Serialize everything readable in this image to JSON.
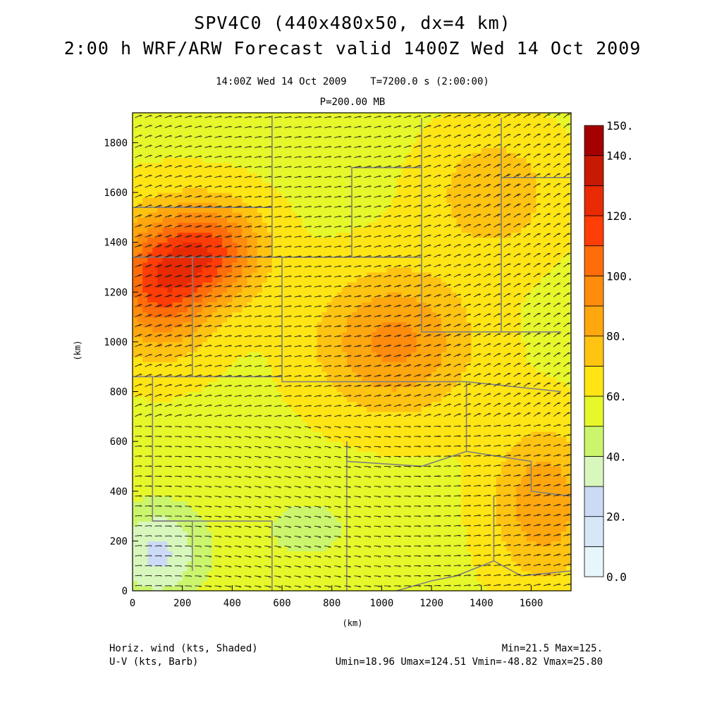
{
  "header": {
    "title_line1": "SPV4C0 (440x480x50, dx=4 km)",
    "title_line2": "2:00 h WRF/ARW Forecast valid 1400Z Wed 14 Oct 2009",
    "subtitle_line1": "14:00Z Wed 14 Oct 2009    T=7200.0 s (2:00:00)",
    "subtitle_line2": "P=200.00 MB"
  },
  "axes": {
    "x_unit": "(km)",
    "y_unit": "(km)",
    "x_range": [
      0,
      1760
    ],
    "y_range": [
      0,
      1920
    ],
    "x_ticks": [
      0,
      200,
      400,
      600,
      800,
      1000,
      1200,
      1400,
      1600
    ],
    "y_ticks": [
      0,
      200,
      400,
      600,
      800,
      1000,
      1200,
      1400,
      1600,
      1800
    ]
  },
  "colorbar": {
    "levels": [
      0,
      10,
      20,
      30,
      40,
      50,
      60,
      70,
      80,
      90,
      100,
      110,
      120,
      130,
      140,
      150
    ],
    "colors": [
      "#e6f6fb",
      "#d6e8f8",
      "#ccdaf6",
      "#d8f7bc",
      "#cbf56c",
      "#e6f72a",
      "#ffe514",
      "#ffc312",
      "#ffa70e",
      "#ff8c0d",
      "#ff6d0a",
      "#ff3d06",
      "#e82a05",
      "#c61a02",
      "#a50000"
    ],
    "labels": [
      {
        "value": 0,
        "text": "0.0"
      },
      {
        "value": 20,
        "text": "20."
      },
      {
        "value": 40,
        "text": "40."
      },
      {
        "value": 60,
        "text": "60."
      },
      {
        "value": 80,
        "text": "80."
      },
      {
        "value": 100,
        "text": "100."
      },
      {
        "value": 120,
        "text": "120."
      },
      {
        "value": 140,
        "text": "140."
      },
      {
        "value": 150,
        "text": "150."
      }
    ]
  },
  "field": {
    "centers": [
      {
        "x": 110,
        "y": 1240,
        "amp": 55,
        "sx": 210,
        "sy": 260
      },
      {
        "x": 330,
        "y": 1370,
        "amp": 45,
        "sx": 200,
        "sy": 190
      },
      {
        "x": 1050,
        "y": 1000,
        "amp": 35,
        "sx": 300,
        "sy": 280
      },
      {
        "x": 1450,
        "y": 1600,
        "amp": 20,
        "sx": 250,
        "sy": 250
      },
      {
        "x": 1650,
        "y": 350,
        "amp": 30,
        "sx": 200,
        "sy": 300
      },
      {
        "x": 100,
        "y": 150,
        "amp": -30,
        "sx": 180,
        "sy": 200
      },
      {
        "x": 700,
        "y": 250,
        "amp": -10,
        "sx": 300,
        "sy": 200
      }
    ],
    "base": 58
  },
  "footer": {
    "left_line1": "Horiz. wind (kts, Shaded)",
    "left_line2": "U-V (kts, Barb)",
    "right_line1": "Min=21.5 Max=125.",
    "right_line2": "Umin=18.96 Umax=124.51 Vmin=-48.82 Vmax=25.80"
  },
  "colors": {
    "border_lines": "#808080",
    "barbs": "#1a1a1a"
  }
}
